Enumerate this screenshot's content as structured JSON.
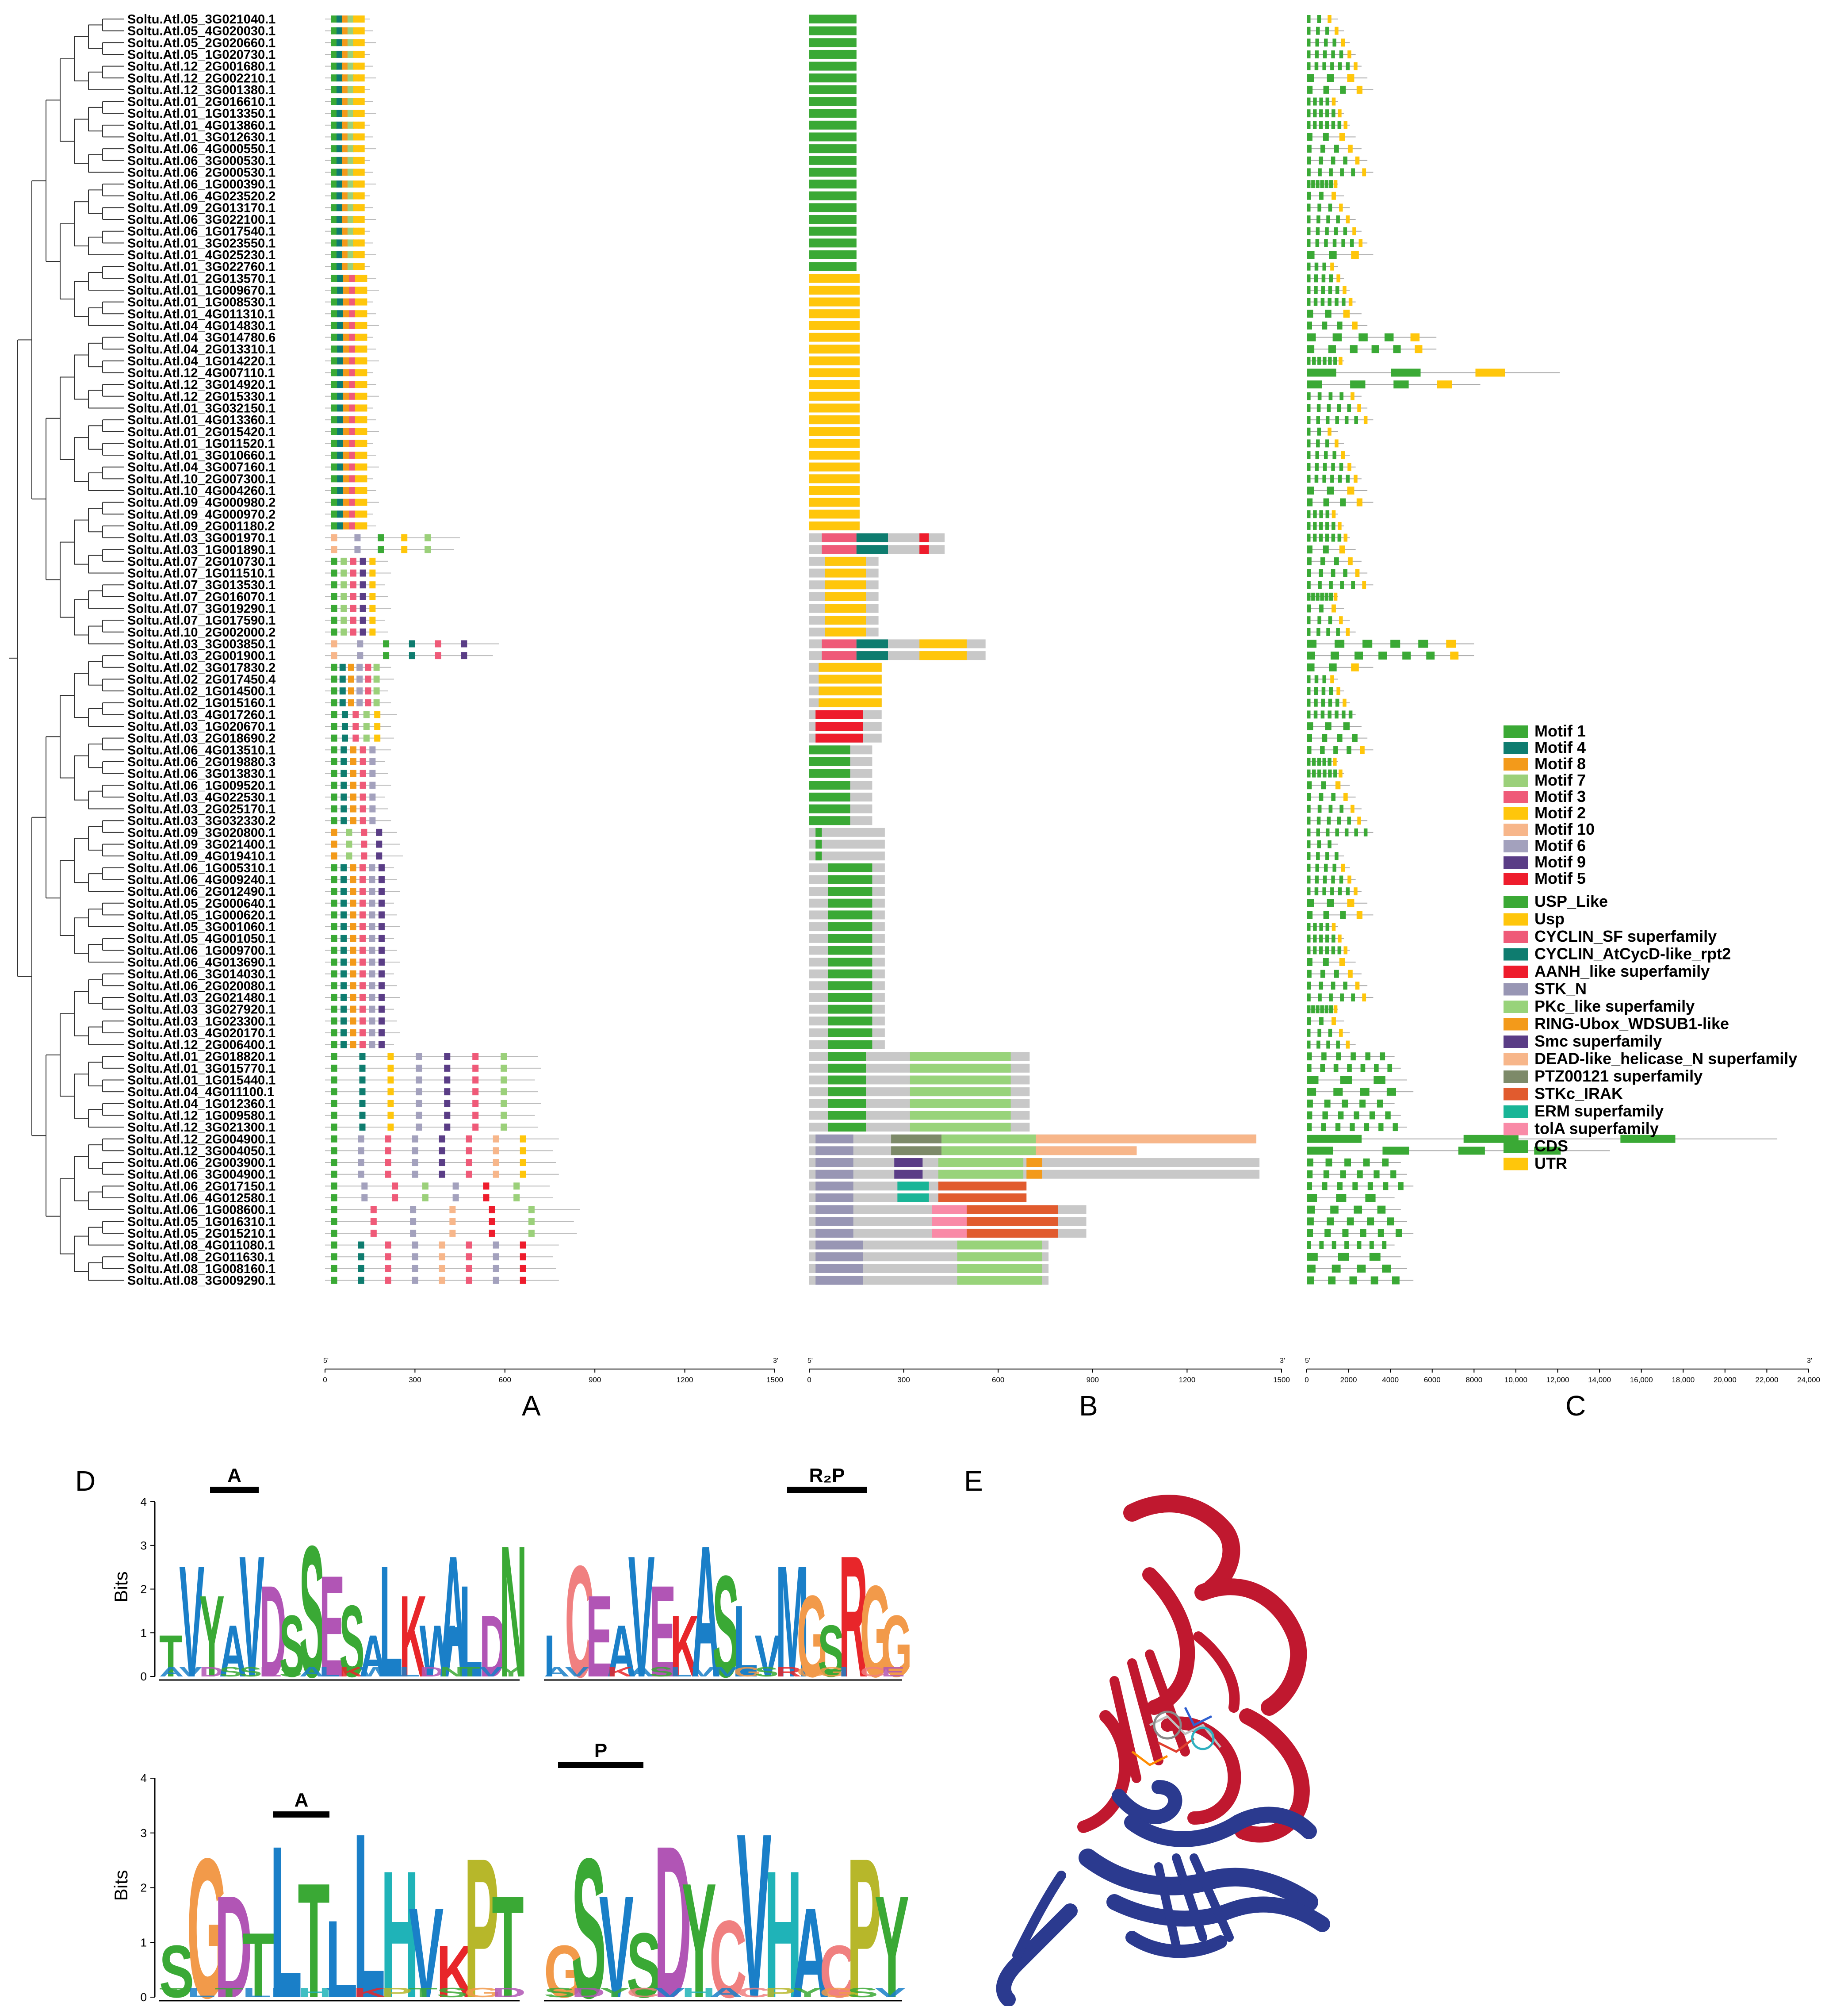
{
  "panel_labels": {
    "a": "A",
    "b": "B",
    "c": "C",
    "d": "D",
    "e": "E"
  },
  "genes": [
    "Soltu.Atl.05_3G021040.1",
    "Soltu.Atl.05_4G020030.1",
    "Soltu.Atl.05_2G020660.1",
    "Soltu.Atl.05_1G020730.1",
    "Soltu.Atl.12_2G001680.1",
    "Soltu.Atl.12_2G002210.1",
    "Soltu.Atl.12_3G001380.1",
    "Soltu.Atl.01_2G016610.1",
    "Soltu.Atl.01_1G013350.1",
    "Soltu.Atl.01_4G013860.1",
    "Soltu.Atl.01_3G012630.1",
    "Soltu.Atl.06_4G000550.1",
    "Soltu.Atl.06_3G000530.1",
    "Soltu.Atl.06_2G000530.1",
    "Soltu.Atl.06_1G000390.1",
    "Soltu.Atl.06_4G023520.2",
    "Soltu.Atl.09_2G013170.1",
    "Soltu.Atl.06_3G022100.1",
    "Soltu.Atl.06_1G017540.1",
    "Soltu.Atl.01_3G023550.1",
    "Soltu.Atl.01_4G025230.1",
    "Soltu.Atl.01_3G022760.1",
    "Soltu.Atl.01_2G013570.1",
    "Soltu.Atl.01_1G009670.1",
    "Soltu.Atl.01_1G008530.1",
    "Soltu.Atl.01_4G011310.1",
    "Soltu.Atl.04_4G014830.1",
    "Soltu.Atl.04_3G014780.6",
    "Soltu.Atl.04_2G013310.1",
    "Soltu.Atl.04_1G014220.1",
    "Soltu.Atl.12_4G007110.1",
    "Soltu.Atl.12_3G014920.1",
    "Soltu.Atl.12_2G015330.1",
    "Soltu.Atl.01_3G032150.1",
    "Soltu.Atl.01_4G013360.1",
    "Soltu.Atl.01_2G015420.1",
    "Soltu.Atl.01_1G011520.1",
    "Soltu.Atl.01_3G010660.1",
    "Soltu.Atl.04_3G007160.1",
    "Soltu.Atl.10_2G007300.1",
    "Soltu.Atl.10_4G004260.1",
    "Soltu.Atl.09_4G000980.2",
    "Soltu.Atl.09_4G000970.2",
    "Soltu.Atl.09_2G001180.2",
    "Soltu.Atl.03_3G001970.1",
    "Soltu.Atl.03_1G001890.1",
    "Soltu.Atl.07_2G010730.1",
    "Soltu.Atl.07_1G011510.1",
    "Soltu.Atl.07_3G013530.1",
    "Soltu.Atl.07_2G016070.1",
    "Soltu.Atl.07_3G019290.1",
    "Soltu.Atl.07_1G017590.1",
    "Soltu.Atl.10_2G002000.2",
    "Soltu.Atl.03_3G003850.1",
    "Soltu.Atl.03_2G001900.1",
    "Soltu.Atl.02_3G017830.2",
    "Soltu.Atl.02_2G017450.4",
    "Soltu.Atl.02_1G014500.1",
    "Soltu.Atl.02_1G015160.1",
    "Soltu.Atl.03_4G017260.1",
    "Soltu.Atl.03_1G020670.1",
    "Soltu.Atl.03_2G018690.2",
    "Soltu.Atl.06_4G013510.1",
    "Soltu.Atl.06_2G019880.3",
    "Soltu.Atl.06_3G013830.1",
    "Soltu.Atl.06_1G009520.1",
    "Soltu.Atl.03_4G022530.1",
    "Soltu.Atl.03_2G025170.1",
    "Soltu.Atl.03_3G032330.2",
    "Soltu.Atl.09_3G020800.1",
    "Soltu.Atl.09_3G021400.1",
    "Soltu.Atl.09_4G019410.1",
    "Soltu.Atl.06_1G005310.1",
    "Soltu.Atl.06_4G009240.1",
    "Soltu.Atl.06_2G012490.1",
    "Soltu.Atl.05_2G000640.1",
    "Soltu.Atl.05_1G000620.1",
    "Soltu.Atl.05_3G001060.1",
    "Soltu.Atl.05_4G001050.1",
    "Soltu.Atl.06_1G009700.1",
    "Soltu.Atl.06_4G013690.1",
    "Soltu.Atl.06_3G014030.1",
    "Soltu.Atl.06_2G020080.1",
    "Soltu.Atl.03_2G021480.1",
    "Soltu.Atl.03_3G027920.1",
    "Soltu.Atl.03_1G023300.1",
    "Soltu.Atl.03_4G020170.1",
    "Soltu.Atl.12_2G006400.1",
    "Soltu.Atl.01_2G018820.1",
    "Soltu.Atl.01_3G015770.1",
    "Soltu.Atl.01_1G015440.1",
    "Soltu.Atl.04_4G011100.1",
    "Soltu.Atl.04_1G012360.1",
    "Soltu.Atl.12_1G009580.1",
    "Soltu.Atl.12_3G021300.1",
    "Soltu.Atl.12_2G004900.1",
    "Soltu.Atl.12_3G004050.1",
    "Soltu.Atl.06_2G003900.1",
    "Soltu.Atl.06_3G004900.1",
    "Soltu.Atl.06_2G017150.1",
    "Soltu.Atl.06_4G012580.1",
    "Soltu.Atl.06_1G008600.1",
    "Soltu.Atl.05_1G016310.1",
    "Soltu.Atl.05_2G015210.1",
    "Soltu.Atl.08_4G011080.1",
    "Soltu.Atl.08_2G011630.1",
    "Soltu.Atl.08_1G008160.1",
    "Soltu.Atl.08_3G009290.1"
  ],
  "colors": {
    "Motif 1": "#3aa935",
    "Motif 4": "#0e7c6f",
    "Motif 8": "#f39a1a",
    "Motif 7": "#9bd07a",
    "Motif 3": "#ef5a78",
    "Motif 2": "#ffc60b",
    "Motif 10": "#f7b68a",
    "Motif 6": "#a3a1bd",
    "Motif 9": "#5a3d86",
    "Motif 5": "#ee1c2c",
    "USP_Like": "#3aa935",
    "Usp": "#ffc60b",
    "CYCLIN_SF superfamily": "#ef5a78",
    "CYCLIN_AtCycD-like_rpt2": "#0e7c6f",
    "AANH_like superfamily": "#ee1c2c",
    "STK_N": "#9896b4",
    "PKc_like superfamily": "#98d37a",
    "RING-Ubox_WDSUB1-like": "#f39a1a",
    "Smc superfamily": "#5a3d86",
    "DEAD-like_helicase_N superfamily": "#f7b68a",
    "PTZ00121 superfamily": "#7d8a69",
    "STKc_IRAK": "#e15b2e",
    "ERM superfamily": "#19b597",
    "tolA superfamily": "#f98aa7",
    "CDS": "#3aa935",
    "UTR": "#ffc60b"
  },
  "legend_motifs": [
    "Motif 1",
    "Motif 4",
    "Motif 8",
    "Motif 7",
    "Motif 3",
    "Motif 2",
    "Motif 10",
    "Motif 6",
    "Motif 9",
    "Motif 5"
  ],
  "legend_domains": [
    "USP_Like",
    "Usp",
    "CYCLIN_SF superfamily",
    "CYCLIN_AtCycD-like_rpt2",
    "AANH_like superfamily",
    "STK_N",
    "PKc_like superfamily",
    "RING-Ubox_WDSUB1-like",
    "Smc superfamily",
    "DEAD-like_helicase_N superfamily",
    "PTZ00121 superfamily",
    "STKc_IRAK",
    "ERM superfamily",
    "tolA superfamily"
  ],
  "legend_gene": [
    "CDS",
    "UTR"
  ],
  "axis_a": {
    "start": "5'",
    "end": "3'",
    "ticks": [
      "0",
      "300",
      "600",
      "900",
      "1200",
      "1500"
    ]
  },
  "axis_b": {
    "start": "5'",
    "end": "3'",
    "ticks": [
      "0",
      "300",
      "600",
      "900",
      "1200",
      "1500"
    ]
  },
  "axis_c": {
    "start": "5'",
    "end": "3'",
    "ticks": [
      "0",
      "2000",
      "4000",
      "6000",
      "8000",
      "10,000",
      "12,000",
      "14,000",
      "16,000",
      "18,000",
      "20,000",
      "22,000",
      "24,000"
    ]
  },
  "logo_ylabel": "Bits",
  "logo_yticks": [
    "0",
    "1",
    "2",
    "3",
    "4"
  ],
  "logo_markers": {
    "top_left": "A",
    "top_right": "R₂P",
    "bottom_left": "A",
    "bottom_right": "P"
  },
  "logo_seqs": {
    "top_left": "TVYAVDSSESALKWALDN",
    "top_right": "ICEAVEKASLVMGSRGG",
    "bottom_left": "SGDTLTLLHVKPT",
    "bottom_right": "GSVSDYCVHACPY"
  }
}
